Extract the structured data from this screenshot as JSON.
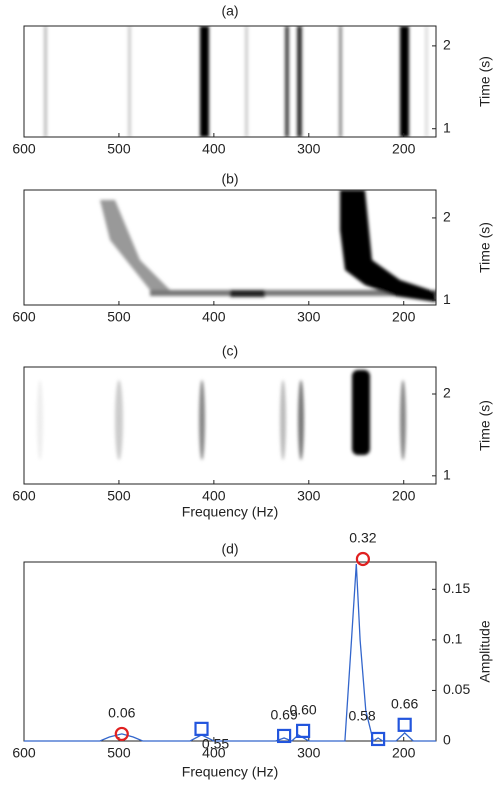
{
  "chart_data": [
    {
      "type": "heatmap",
      "title": "(a)",
      "xlim": [
        600,
        166
      ],
      "xticks": [
        600,
        500,
        400,
        300,
        200
      ],
      "ylim": [
        0.9,
        2.24
      ],
      "yticks": [
        1,
        2
      ],
      "ylabel": "Time (s)"
    },
    {
      "type": "heatmap",
      "title": "(b)",
      "xlim": [
        600,
        166
      ],
      "xticks": [
        600,
        500,
        400,
        300,
        200
      ],
      "ylim": [
        0.94,
        2.34
      ],
      "yticks": [
        1,
        2
      ],
      "ylabel": "Time (s)"
    },
    {
      "type": "heatmap",
      "title": "(c)",
      "xlim": [
        600,
        166
      ],
      "xticks": [
        600,
        500,
        400,
        300,
        200
      ],
      "ylim": [
        0.9,
        2.33
      ],
      "yticks": [
        1,
        2
      ],
      "ylabel": "Time (s)",
      "xlabel": "Frequency (Hz)"
    },
    {
      "type": "line",
      "title": "(d)",
      "xlim": [
        600,
        166
      ],
      "xticks": [
        600,
        500,
        400,
        300,
        200
      ],
      "ylim": [
        0,
        0.177
      ],
      "yticks": [
        0,
        0.05,
        0.1,
        0.15
      ],
      "xlabel": "Frequency (Hz)",
      "ylabel": "Amplitude",
      "color": "#3366cc",
      "x": [
        600,
        520,
        510,
        497,
        485,
        475,
        425,
        413,
        400,
        335,
        326,
        318,
        311,
        300,
        262,
        255,
        250,
        246,
        240,
        232,
        227,
        222,
        208,
        199,
        190,
        166
      ],
      "values": [
        0,
        0,
        0.004,
        0.007,
        0.004,
        0,
        0,
        0.006,
        0,
        0,
        0.003,
        0,
        0.006,
        0,
        0,
        0.1,
        0.175,
        0.1,
        0.03,
        0,
        0.003,
        0,
        0,
        0.008,
        0,
        0
      ],
      "markers": [
        {
          "shape": "circle",
          "color": "#e02020",
          "x": [
            497,
            243
          ],
          "values": [
            0.007,
            0.18
          ],
          "labels": [
            "0.06",
            "0.32"
          ]
        },
        {
          "shape": "square",
          "color": "#2255dd",
          "x": [
            413,
            326,
            306,
            227,
            199
          ],
          "values": [
            0.012,
            0.005,
            0.01,
            0.002,
            0.016
          ],
          "labels": [
            "0.55",
            "0.69",
            "0.60",
            "0.58",
            "0.66"
          ]
        }
      ]
    }
  ]
}
